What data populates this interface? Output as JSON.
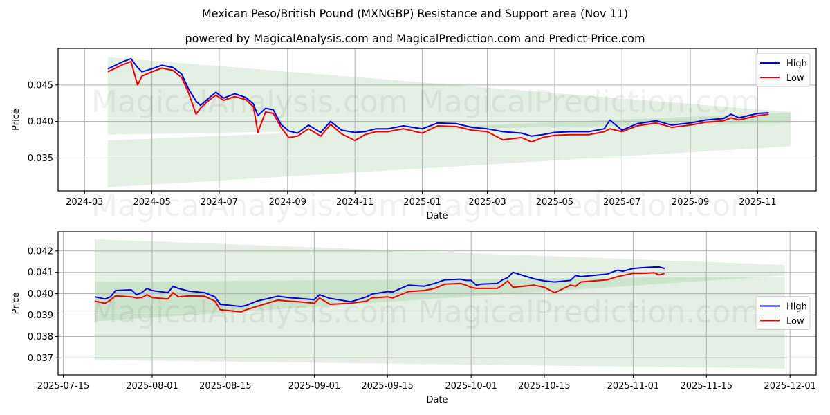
{
  "header": {
    "title": "Mexican Peso/British Pound (MXNGBP) Resistance and Support area (Nov 11)",
    "subtitle": "powered by MagicalAnalysis.com and MagicalPrediction.com and Predict-Price.com"
  },
  "watermarks": [
    "MagicalAnalysis.com",
    "MagicalPrediction.com"
  ],
  "colors": {
    "high": "#0000dd",
    "low": "#ee0000",
    "band_light": "#d8ead8",
    "band_dark": "#bcdcbc",
    "grid": "#b0b0b0"
  },
  "chart_data": [
    {
      "type": "line",
      "title": "Full history",
      "xlabel": "Date",
      "ylabel": "Price",
      "ylim": [
        0.0305,
        0.05
      ],
      "grid": true,
      "legend_position": "upper right",
      "x_ticks": [
        "2024-03",
        "2024-05",
        "2024-07",
        "2024-09",
        "2024-11",
        "2025-01",
        "2025-03",
        "2025-05",
        "2025-07",
        "2025-09",
        "2025-11"
      ],
      "y_ticks": [
        "0.035",
        "0.040",
        "0.045"
      ],
      "legend": [
        "High",
        "Low"
      ],
      "x": [
        "2024-03-22",
        "2024-04-05",
        "2024-04-12",
        "2024-04-18",
        "2024-04-22",
        "2024-05-01",
        "2024-05-10",
        "2024-05-20",
        "2024-05-28",
        "2024-06-03",
        "2024-06-10",
        "2024-06-14",
        "2024-06-20",
        "2024-06-28",
        "2024-07-05",
        "2024-07-15",
        "2024-07-25",
        "2024-08-01",
        "2024-08-05",
        "2024-08-12",
        "2024-08-19",
        "2024-08-26",
        "2024-09-02",
        "2024-09-10",
        "2024-09-20",
        "2024-10-01",
        "2024-10-10",
        "2024-10-20",
        "2024-11-01",
        "2024-11-10",
        "2024-11-20",
        "2024-12-01",
        "2024-12-15",
        "2025-01-01",
        "2025-01-15",
        "2025-02-01",
        "2025-02-15",
        "2025-03-01",
        "2025-03-15",
        "2025-04-01",
        "2025-04-10",
        "2025-04-20",
        "2025-05-01",
        "2025-05-15",
        "2025-06-01",
        "2025-06-15",
        "2025-06-20",
        "2025-07-01",
        "2025-07-15",
        "2025-08-01",
        "2025-08-15",
        "2025-09-01",
        "2025-09-15",
        "2025-10-01",
        "2025-10-08",
        "2025-10-15",
        "2025-11-01",
        "2025-11-11"
      ],
      "series": [
        {
          "name": "High",
          "values": [
            0.0472,
            0.0482,
            0.0486,
            0.0474,
            0.0468,
            0.0472,
            0.0477,
            0.0474,
            0.0465,
            0.0445,
            0.0428,
            0.0422,
            0.043,
            0.044,
            0.0432,
            0.0438,
            0.0433,
            0.0424,
            0.0408,
            0.0418,
            0.0416,
            0.0396,
            0.0387,
            0.0384,
            0.0395,
            0.0385,
            0.04,
            0.0388,
            0.0385,
            0.0386,
            0.039,
            0.039,
            0.0394,
            0.039,
            0.0398,
            0.0397,
            0.0392,
            0.039,
            0.0386,
            0.0384,
            0.038,
            0.0382,
            0.0385,
            0.0386,
            0.0386,
            0.039,
            0.0402,
            0.0388,
            0.0397,
            0.0401,
            0.0395,
            0.0398,
            0.0402,
            0.0404,
            0.041,
            0.0405,
            0.0411,
            0.0412
          ]
        },
        {
          "name": "Low",
          "values": [
            0.0468,
            0.0478,
            0.0482,
            0.045,
            0.0462,
            0.0468,
            0.0473,
            0.047,
            0.046,
            0.044,
            0.041,
            0.0418,
            0.0427,
            0.0436,
            0.0429,
            0.0434,
            0.043,
            0.042,
            0.0385,
            0.0413,
            0.0411,
            0.0392,
            0.0378,
            0.038,
            0.039,
            0.038,
            0.0396,
            0.0383,
            0.0374,
            0.0382,
            0.0386,
            0.0386,
            0.039,
            0.0384,
            0.0394,
            0.0393,
            0.0388,
            0.0386,
            0.0375,
            0.0378,
            0.0372,
            0.0378,
            0.0381,
            0.0382,
            0.0382,
            0.0386,
            0.039,
            0.0386,
            0.0394,
            0.0398,
            0.0392,
            0.0395,
            0.0399,
            0.0401,
            0.0405,
            0.0402,
            0.0408,
            0.041
          ]
        }
      ],
      "bands": [
        {
          "name": "resistance",
          "x_start": "2024-03-22",
          "x_end": "2025-12-01",
          "upper": [
            0.0488,
            0.0413
          ],
          "lower": [
            0.0382,
            0.0398
          ]
        },
        {
          "name": "support",
          "x_start": "2024-03-22",
          "x_end": "2025-12-01",
          "upper": [
            0.0374,
            0.0412
          ],
          "lower": [
            0.031,
            0.0366
          ]
        }
      ]
    },
    {
      "type": "line",
      "title": "Recent detail",
      "xlabel": "Date",
      "ylabel": "Price",
      "ylim": [
        0.0362,
        0.0429
      ],
      "grid": true,
      "legend_position": "center right",
      "x_ticks": [
        "2025-07-15",
        "2025-08-01",
        "2025-08-15",
        "2025-09-01",
        "2025-09-15",
        "2025-10-01",
        "2025-10-15",
        "2025-11-01",
        "2025-11-15",
        "2025-12-01"
      ],
      "y_ticks": [
        "0.037",
        "0.038",
        "0.039",
        "0.040",
        "0.041",
        "0.042"
      ],
      "legend": [
        "High",
        "Low"
      ],
      "x": [
        "2025-07-21",
        "2025-07-23",
        "2025-07-24",
        "2025-07-25",
        "2025-07-28",
        "2025-07-29",
        "2025-07-30",
        "2025-07-31",
        "2025-08-01",
        "2025-08-04",
        "2025-08-05",
        "2025-08-06",
        "2025-08-08",
        "2025-08-11",
        "2025-08-13",
        "2025-08-14",
        "2025-08-18",
        "2025-08-19",
        "2025-08-21",
        "2025-08-25",
        "2025-08-27",
        "2025-08-29",
        "2025-09-01",
        "2025-09-02",
        "2025-09-04",
        "2025-09-08",
        "2025-09-11",
        "2025-09-12",
        "2025-09-15",
        "2025-09-16",
        "2025-09-19",
        "2025-09-22",
        "2025-09-24",
        "2025-09-26",
        "2025-09-29",
        "2025-09-30",
        "2025-10-01",
        "2025-10-02",
        "2025-10-03",
        "2025-10-06",
        "2025-10-07",
        "2025-10-08",
        "2025-10-09",
        "2025-10-13",
        "2025-10-15",
        "2025-10-17",
        "2025-10-20",
        "2025-10-21",
        "2025-10-22",
        "2025-10-27",
        "2025-10-29",
        "2025-10-30",
        "2025-11-01",
        "2025-11-03",
        "2025-11-05",
        "2025-11-06",
        "2025-11-07"
      ],
      "series": [
        {
          "name": "High",
          "values": [
            0.03985,
            0.03975,
            0.03985,
            0.04015,
            0.04018,
            0.03995,
            0.04005,
            0.04025,
            0.04015,
            0.04005,
            0.04035,
            0.04025,
            0.04012,
            0.04005,
            0.03985,
            0.0395,
            0.0394,
            0.03945,
            0.03965,
            0.03988,
            0.03982,
            0.03978,
            0.03972,
            0.03995,
            0.03978,
            0.03962,
            0.03985,
            0.03998,
            0.0401,
            0.04008,
            0.0404,
            0.04035,
            0.04048,
            0.04065,
            0.04068,
            0.04062,
            0.04062,
            0.0404,
            0.04045,
            0.04048,
            0.04065,
            0.04075,
            0.041,
            0.0407,
            0.0406,
            0.04055,
            0.04062,
            0.04085,
            0.0408,
            0.04092,
            0.0411,
            0.04105,
            0.04118,
            0.04122,
            0.04125,
            0.04125,
            0.04118
          ]
        },
        {
          "name": "Low",
          "values": [
            0.03965,
            0.03955,
            0.0397,
            0.0399,
            0.03985,
            0.0398,
            0.03982,
            0.03995,
            0.03982,
            0.03975,
            0.04005,
            0.03985,
            0.0399,
            0.03988,
            0.03965,
            0.03925,
            0.03915,
            0.03925,
            0.0394,
            0.0397,
            0.03965,
            0.03962,
            0.03955,
            0.0398,
            0.0395,
            0.03955,
            0.03965,
            0.0398,
            0.03985,
            0.0398,
            0.0401,
            0.04015,
            0.04025,
            0.04045,
            0.04048,
            0.0404,
            0.0403,
            0.04025,
            0.04025,
            0.04025,
            0.0404,
            0.0406,
            0.0403,
            0.0404,
            0.0403,
            0.04005,
            0.0404,
            0.04035,
            0.04055,
            0.04065,
            0.0408,
            0.04085,
            0.04095,
            0.04095,
            0.04098,
            0.04088,
            0.04095
          ]
        }
      ],
      "bands": [
        {
          "name": "resistance",
          "x_start": "2025-07-21",
          "x_end": "2025-11-30",
          "upper": [
            0.04255,
            0.04135
          ],
          "lower": [
            0.0387,
            0.04085
          ]
        },
        {
          "name": "support",
          "x_start": "2025-07-21",
          "x_end": "2025-11-30",
          "upper": [
            0.04055,
            0.0408
          ],
          "lower": [
            0.0369,
            0.0365
          ]
        }
      ]
    }
  ]
}
